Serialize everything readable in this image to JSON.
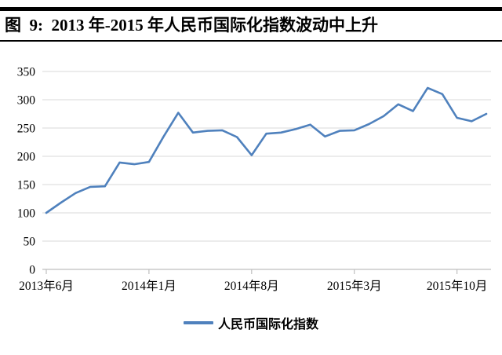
{
  "header": {
    "title": "图  9:  2013 年-2015 年人民币国际化指数波动中上升"
  },
  "chart_data": {
    "type": "line",
    "title": "图 9: 2013年-2015年人民币国际化指数波动中上升",
    "categories": [
      "2013年6月",
      "2013年7月",
      "2013年8月",
      "2013年9月",
      "2013年10月",
      "2013年11月",
      "2013年12月",
      "2014年1月",
      "2014年2月",
      "2014年3月",
      "2014年4月",
      "2014年5月",
      "2014年6月",
      "2014年7月",
      "2014年8月",
      "2014年9月",
      "2014年10月",
      "2014年11月",
      "2014年12月",
      "2015年1月",
      "2015年2月",
      "2015年3月",
      "2015年4月",
      "2015年5月",
      "2015年6月",
      "2015年7月",
      "2015年8月",
      "2015年9月",
      "2015年10月",
      "2015年11月",
      "2015年12月"
    ],
    "series": [
      {
        "name": "人民币国际化指数",
        "values": [
          100,
          118,
          135,
          146,
          147,
          189,
          186,
          190,
          235,
          277,
          242,
          245,
          246,
          234,
          202,
          240,
          242,
          248,
          256,
          235,
          245,
          246,
          257,
          271,
          292,
          280,
          321,
          310,
          268,
          262,
          275
        ]
      }
    ],
    "x_tick_labels": [
      "2013年6月",
      "2014年1月",
      "2014年8月",
      "2015年3月",
      "2015年10月"
    ],
    "x_tick_indices": [
      0,
      7,
      14,
      21,
      28
    ],
    "y_ticks": [
      0,
      50,
      100,
      150,
      200,
      250,
      300,
      350
    ],
    "ylim": [
      0,
      350
    ],
    "grid": "horizontal-only",
    "legend_position": "bottom",
    "colors": {
      "line": "#4F81BD",
      "gridline": "#D9D9D9",
      "axis": "#BFBFBF",
      "text": "#000000",
      "rule": "#000000"
    }
  }
}
